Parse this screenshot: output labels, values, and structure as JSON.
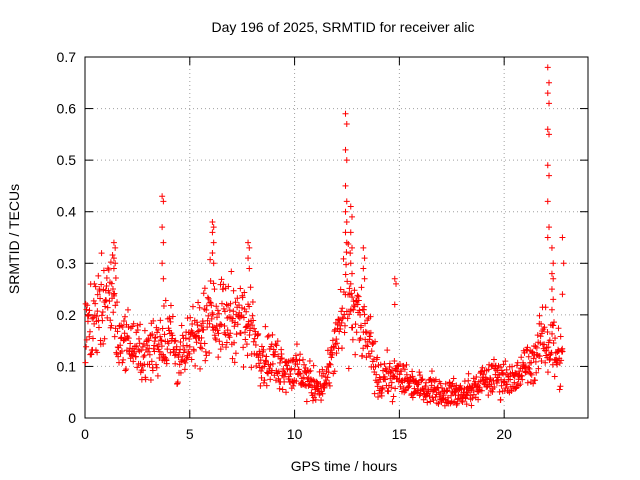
{
  "chart_data": {
    "type": "scatter",
    "title": "Day 196 of 2025, SRMTID for receiver alic",
    "xlabel": "GPS time / hours",
    "ylabel": "SRMTID / TECUs",
    "xlim": [
      0,
      24
    ],
    "ylim": [
      0,
      0.7
    ],
    "xticks": [
      0,
      5,
      10,
      15,
      20
    ],
    "yticks": [
      0,
      0.1,
      0.2,
      0.3,
      0.4,
      0.5,
      0.6,
      0.7
    ],
    "ytick_labels": [
      "0",
      "0.1",
      "0.2",
      "0.3",
      "0.4",
      "0.5",
      "0.6",
      "0.7"
    ],
    "grid": true,
    "marker": "+",
    "color": "#ff0000",
    "profile": [
      [
        0,
        0.17,
        0.06
      ],
      [
        0.5,
        0.19,
        0.06
      ],
      [
        1.0,
        0.22,
        0.07
      ],
      [
        1.3,
        0.24,
        0.07
      ],
      [
        1.6,
        0.16,
        0.04
      ],
      [
        2.0,
        0.15,
        0.04
      ],
      [
        2.5,
        0.13,
        0.04
      ],
      [
        3.0,
        0.12,
        0.04
      ],
      [
        3.5,
        0.15,
        0.05
      ],
      [
        4.0,
        0.17,
        0.06
      ],
      [
        4.5,
        0.11,
        0.04
      ],
      [
        5.0,
        0.14,
        0.04
      ],
      [
        5.5,
        0.17,
        0.05
      ],
      [
        6.0,
        0.22,
        0.06
      ],
      [
        6.5,
        0.19,
        0.06
      ],
      [
        7.0,
        0.2,
        0.06
      ],
      [
        7.5,
        0.19,
        0.06
      ],
      [
        8.0,
        0.17,
        0.05
      ],
      [
        8.5,
        0.12,
        0.04
      ],
      [
        9.0,
        0.11,
        0.04
      ],
      [
        9.5,
        0.1,
        0.035
      ],
      [
        10.0,
        0.09,
        0.035
      ],
      [
        10.5,
        0.08,
        0.03
      ],
      [
        11.0,
        0.06,
        0.025
      ],
      [
        11.5,
        0.07,
        0.025
      ],
      [
        12.0,
        0.15,
        0.05
      ],
      [
        12.5,
        0.24,
        0.08
      ],
      [
        13.0,
        0.2,
        0.06
      ],
      [
        13.5,
        0.15,
        0.05
      ],
      [
        14.0,
        0.07,
        0.03
      ],
      [
        14.5,
        0.08,
        0.03
      ],
      [
        15.0,
        0.08,
        0.03
      ],
      [
        15.5,
        0.07,
        0.025
      ],
      [
        16.0,
        0.06,
        0.02
      ],
      [
        16.5,
        0.06,
        0.02
      ],
      [
        17.0,
        0.05,
        0.02
      ],
      [
        17.5,
        0.05,
        0.02
      ],
      [
        18.0,
        0.045,
        0.02
      ],
      [
        18.5,
        0.055,
        0.02
      ],
      [
        19.0,
        0.07,
        0.025
      ],
      [
        19.5,
        0.08,
        0.025
      ],
      [
        20.0,
        0.08,
        0.03
      ],
      [
        20.5,
        0.07,
        0.025
      ],
      [
        21.0,
        0.1,
        0.03
      ],
      [
        21.5,
        0.12,
        0.035
      ],
      [
        22.0,
        0.16,
        0.05
      ],
      [
        22.5,
        0.13,
        0.05
      ],
      [
        22.8,
        0.11,
        0.04
      ]
    ],
    "spikes": [
      {
        "x": 1.4,
        "values": [
          0.34,
          0.33,
          0.31,
          0.3,
          0.29
        ]
      },
      {
        "x": 3.7,
        "values": [
          0.43,
          0.42,
          0.37,
          0.34,
          0.3,
          0.27
        ]
      },
      {
        "x": 6.1,
        "values": [
          0.38,
          0.37,
          0.36,
          0.34,
          0.32,
          0.3
        ]
      },
      {
        "x": 7.8,
        "values": [
          0.34,
          0.33,
          0.31,
          0.29
        ]
      },
      {
        "x": 12.45,
        "values": [
          0.59,
          0.57,
          0.52,
          0.5,
          0.45,
          0.42,
          0.4,
          0.38,
          0.36,
          0.34
        ]
      },
      {
        "x": 12.7,
        "values": [
          0.41,
          0.39,
          0.36,
          0.33,
          0.3,
          0.28,
          0.26
        ]
      },
      {
        "x": 13.3,
        "values": [
          0.33,
          0.31,
          0.29,
          0.27
        ]
      },
      {
        "x": 14.8,
        "values": [
          0.27,
          0.26,
          0.22
        ]
      },
      {
        "x": 22.1,
        "values": [
          0.68,
          0.65,
          0.63,
          0.61,
          0.56,
          0.55,
          0.49,
          0.47,
          0.42,
          0.37,
          0.35
        ]
      },
      {
        "x": 22.3,
        "values": [
          0.33,
          0.3,
          0.28,
          0.27,
          0.25,
          0.23,
          0.21
        ]
      },
      {
        "x": 22.8,
        "values": [
          0.35,
          0.3,
          0.24
        ]
      }
    ]
  }
}
